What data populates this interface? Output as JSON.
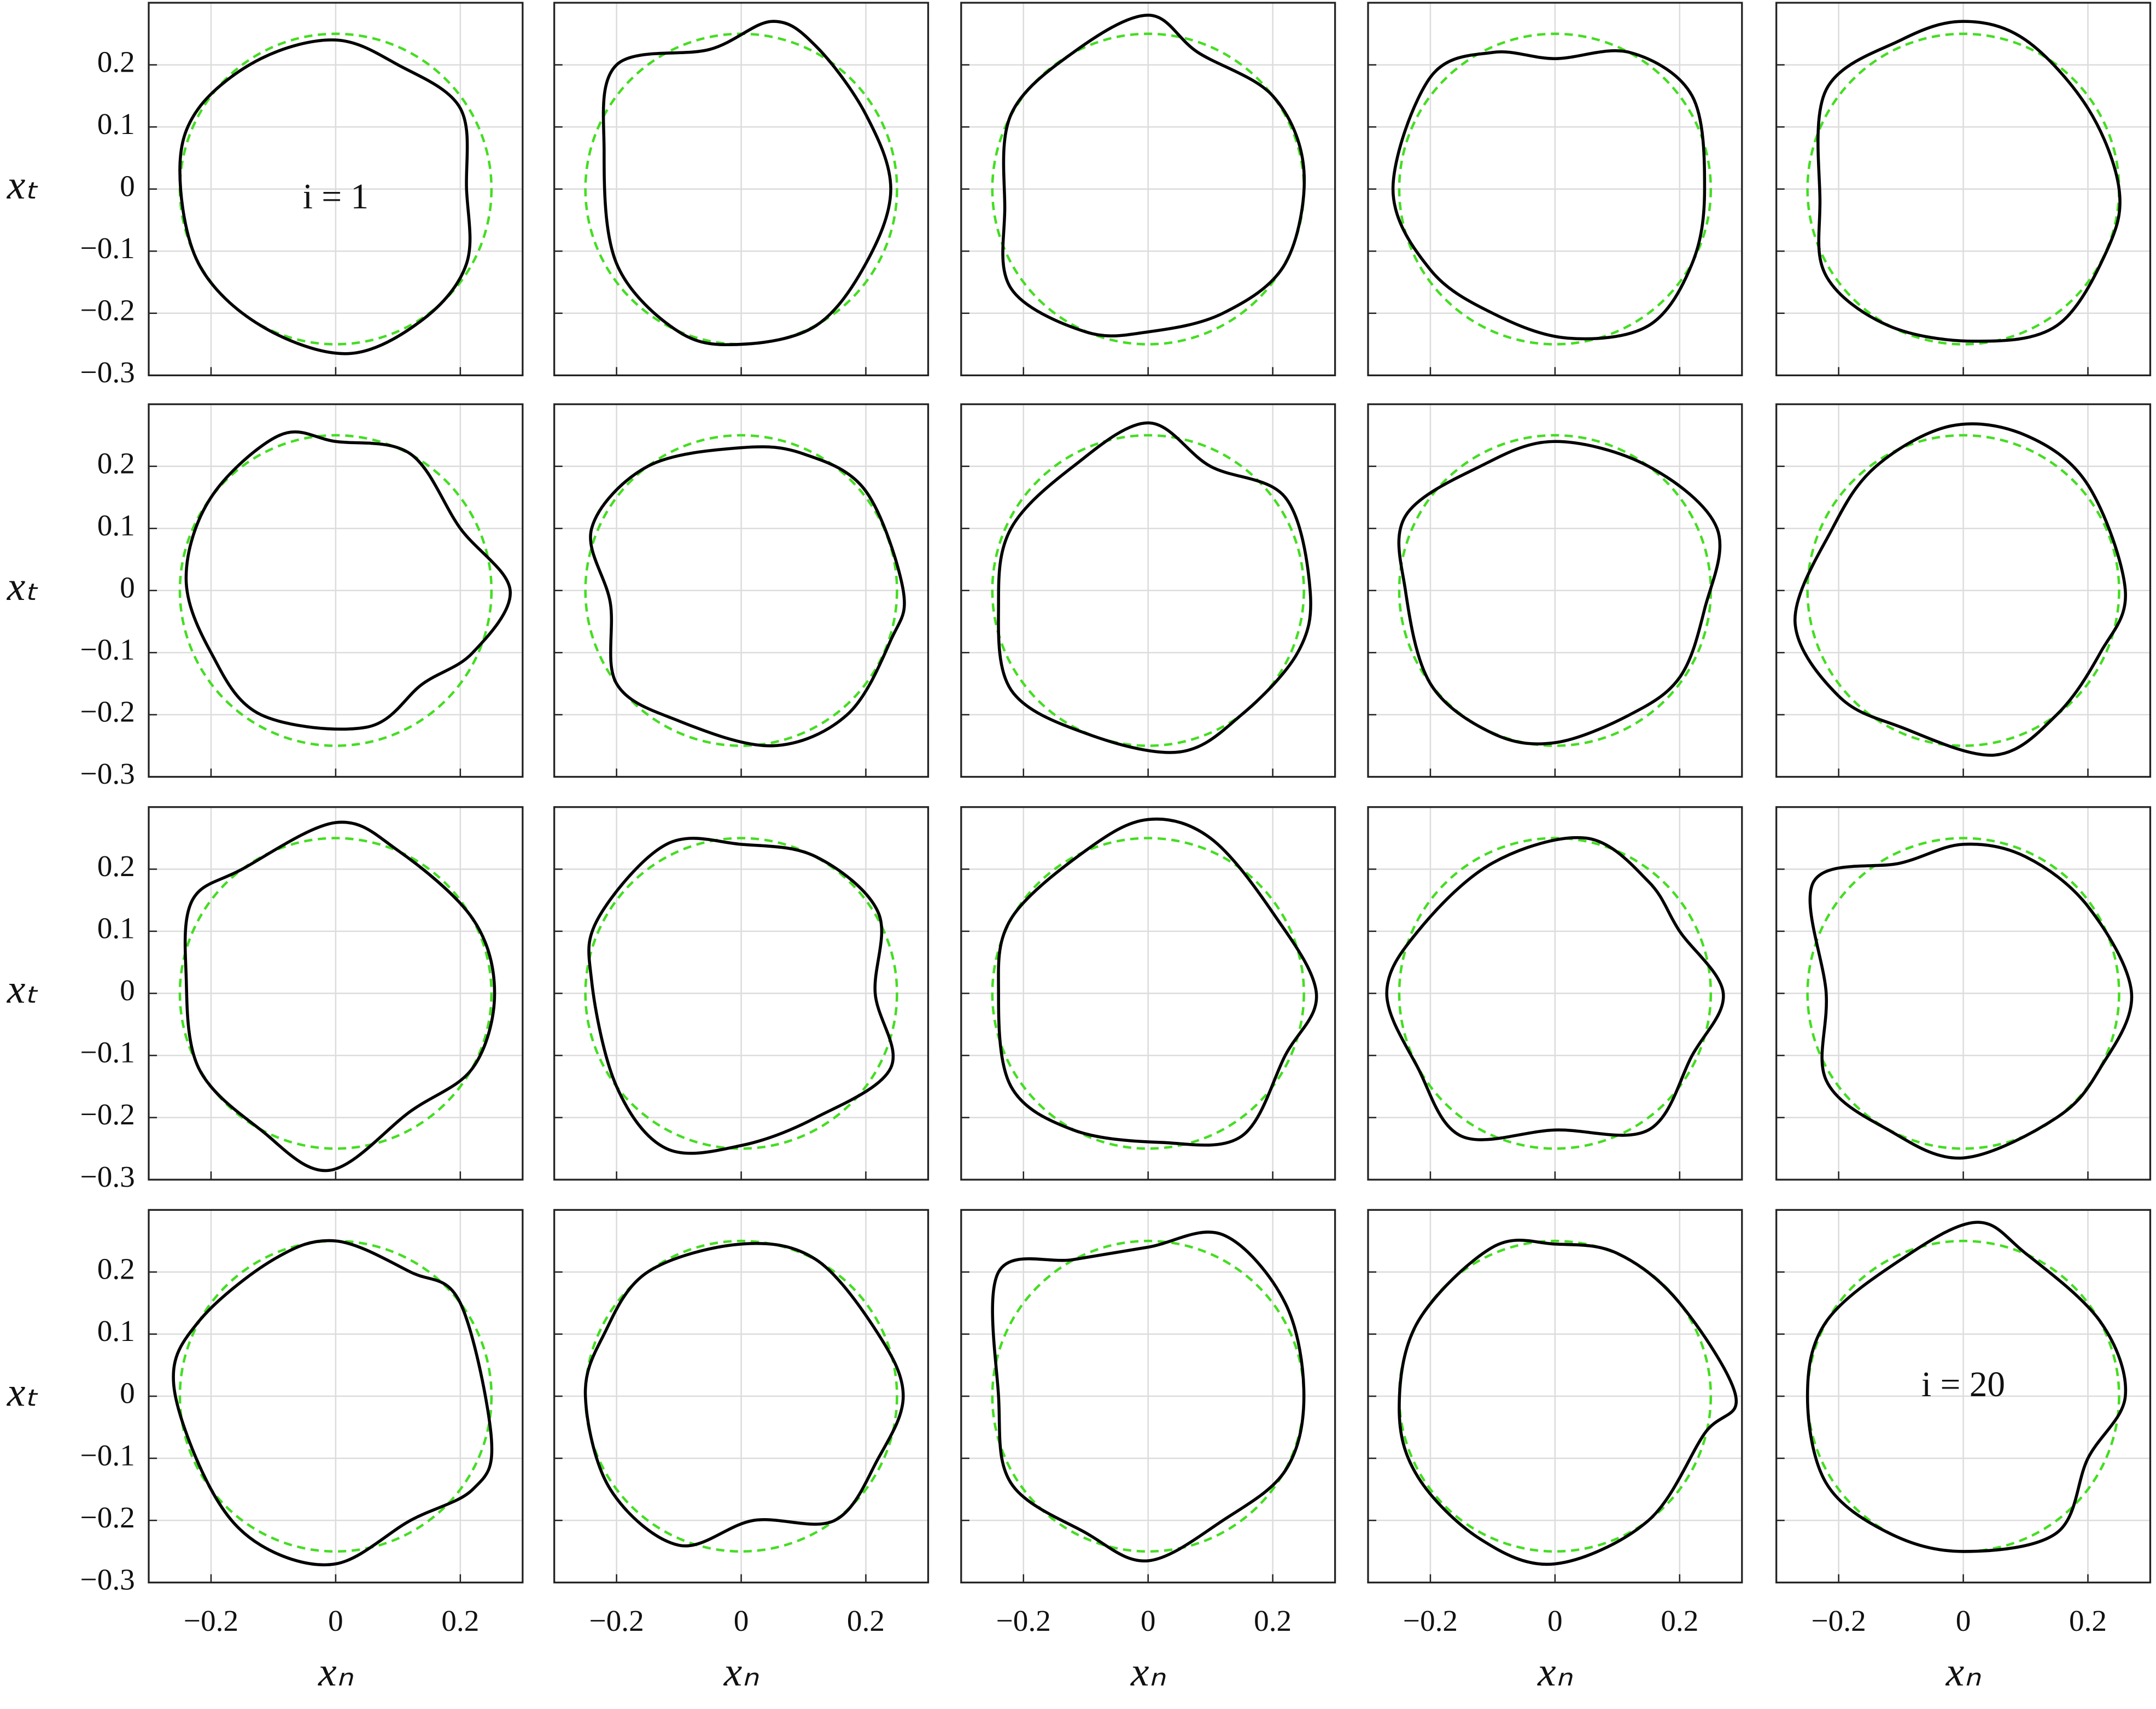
{
  "chart_data": {
    "type": "line",
    "xlabel": "xₙ",
    "ylabel": "xₜ",
    "xlim": [
      -0.3,
      0.3
    ],
    "ylim": [
      -0.3,
      0.3
    ],
    "xticks": [
      {
        "value": -0.2,
        "label": "−0.2"
      },
      0,
      0.2
    ],
    "yticks": [
      {
        "value": -0.3,
        "label": "−0.3"
      },
      {
        "value": -0.2,
        "label": "−0.2"
      },
      {
        "value": -0.1,
        "label": "−0.1"
      },
      0,
      0.1,
      0.2
    ],
    "grid": true,
    "color": "#000000",
    "reference_circle": {
      "radius": 0.25,
      "color": "#44dd22"
    },
    "panels": [
      {
        "x": [
          0.21,
          0.2,
          0.1,
          0,
          -0.12,
          -0.22,
          -0.25,
          -0.22,
          -0.12,
          0.02,
          0.14,
          0.21
        ],
        "y": [
          0,
          0.13,
          0.2,
          0.24,
          0.21,
          0.13,
          0.03,
          -0.12,
          -0.22,
          -0.265,
          -0.21,
          -0.12
        ],
        "annotation": "i = 1"
      },
      {
        "x": [
          0.24,
          0.2,
          0.12,
          0.05,
          -0.05,
          -0.2,
          -0.22,
          -0.2,
          -0.1,
          0,
          0.12,
          0.2
        ],
        "y": [
          0,
          0.12,
          0.23,
          0.27,
          0.225,
          0.2,
          0.06,
          -0.12,
          -0.23,
          -0.25,
          -0.22,
          -0.12
        ]
      },
      {
        "x": [
          0.25,
          0.2,
          0.08,
          0,
          -0.12,
          -0.22,
          -0.23,
          -0.22,
          -0.1,
          0,
          0.12,
          0.22
        ],
        "y": [
          0.03,
          0.15,
          0.22,
          0.28,
          0.22,
          0.12,
          -0.03,
          -0.16,
          -0.23,
          -0.23,
          -0.2,
          -0.12
        ]
      },
      {
        "x": [
          0.24,
          0.22,
          0.12,
          0,
          -0.1,
          -0.2,
          -0.26,
          -0.2,
          -0.1,
          0.02,
          0.15,
          0.22
        ],
        "y": [
          0,
          0.15,
          0.22,
          0.21,
          0.22,
          0.18,
          0,
          -0.13,
          -0.2,
          -0.24,
          -0.22,
          -0.12
        ]
      },
      {
        "x": [
          0.25,
          0.2,
          0.1,
          0,
          -0.1,
          -0.22,
          -0.23,
          -0.22,
          -0.12,
          0.02,
          0.15,
          0.23
        ],
        "y": [
          0,
          0.13,
          0.24,
          0.27,
          0.24,
          0.16,
          -0.02,
          -0.14,
          -0.22,
          -0.245,
          -0.22,
          -0.1
        ]
      },
      {
        "x": [
          0.28,
          0.2,
          0.12,
          0,
          -0.09,
          -0.2,
          -0.24,
          -0.2,
          -0.12,
          0.05,
          0.14,
          0.22
        ],
        "y": [
          0,
          0.1,
          0.22,
          0.24,
          0.25,
          0.15,
          0.02,
          -0.1,
          -0.2,
          -0.22,
          -0.15,
          -0.1
        ]
      },
      {
        "x": [
          0.26,
          0.2,
          0.1,
          0,
          -0.15,
          -0.24,
          -0.21,
          -0.2,
          -0.1,
          0.05,
          0.17,
          0.24
        ],
        "y": [
          0,
          0.16,
          0.22,
          0.23,
          0.2,
          0.1,
          -0.02,
          -0.15,
          -0.21,
          -0.25,
          -0.2,
          -0.08
        ]
      },
      {
        "x": [
          0.26,
          0.22,
          0.1,
          0,
          -0.12,
          -0.22,
          -0.24,
          -0.22,
          -0.1,
          0.05,
          0.15,
          0.24
        ],
        "y": [
          0,
          0.15,
          0.2,
          0.27,
          0.2,
          0.1,
          -0.02,
          -0.16,
          -0.23,
          -0.26,
          -0.2,
          -0.1
        ]
      },
      {
        "x": [
          0.24,
          0.26,
          0.15,
          0,
          -0.12,
          -0.24,
          -0.24,
          -0.2,
          -0.1,
          0,
          0.12,
          0.2
        ],
        "y": [
          -0.03,
          0.1,
          0.2,
          0.24,
          0.2,
          0.12,
          0,
          -0.15,
          -0.23,
          -0.245,
          -0.2,
          -0.14
        ]
      },
      {
        "x": [
          0.26,
          0.2,
          0.1,
          -0.02,
          -0.14,
          -0.21,
          -0.27,
          -0.2,
          -0.1,
          0.05,
          0.15,
          0.22
        ],
        "y": [
          0,
          0.17,
          0.25,
          0.265,
          0.2,
          0.1,
          -0.05,
          -0.17,
          -0.22,
          -0.265,
          -0.2,
          -0.1
        ]
      },
      {
        "x": [
          0.255,
          0.22,
          0.1,
          0,
          -0.15,
          -0.23,
          -0.24,
          -0.22,
          -0.12,
          -0.01,
          0.12,
          0.22
        ],
        "y": [
          0,
          0.12,
          0.23,
          0.275,
          0.2,
          0.15,
          0.03,
          -0.12,
          -0.22,
          -0.285,
          -0.19,
          -0.12
        ]
      },
      {
        "x": [
          0.215,
          0.22,
          0.12,
          0,
          -0.12,
          -0.23,
          -0.24,
          -0.2,
          -0.12,
          0,
          0.12,
          0.24
        ],
        "y": [
          0,
          0.13,
          0.22,
          0.24,
          0.24,
          0.12,
          0.02,
          -0.15,
          -0.25,
          -0.245,
          -0.2,
          -0.12
        ]
      },
      {
        "x": [
          0.27,
          0.2,
          0.1,
          0,
          -0.1,
          -0.22,
          -0.24,
          -0.22,
          -0.12,
          0.02,
          0.15,
          0.22
        ],
        "y": [
          0,
          0.13,
          0.25,
          0.28,
          0.23,
          0.12,
          0,
          -0.15,
          -0.22,
          -0.24,
          -0.23,
          -0.1
        ]
      },
      {
        "x": [
          0.27,
          0.2,
          0.15,
          0.05,
          -0.1,
          -0.22,
          -0.27,
          -0.22,
          -0.15,
          0,
          0.15,
          0.22
        ],
        "y": [
          0,
          0.1,
          0.18,
          0.25,
          0.21,
          0.1,
          0,
          -0.12,
          -0.23,
          -0.22,
          -0.22,
          -0.1
        ]
      },
      {
        "x": [
          0.27,
          0.2,
          0.1,
          0,
          -0.1,
          -0.24,
          -0.22,
          -0.22,
          -0.12,
          0,
          0.15,
          0.22
        ],
        "y": [
          0,
          0.14,
          0.22,
          0.24,
          0.21,
          0.18,
          0,
          -0.14,
          -0.22,
          -0.265,
          -0.2,
          -0.12
        ]
      },
      {
        "x": [
          0.25,
          0.2,
          0.12,
          0,
          -0.1,
          -0.22,
          -0.26,
          -0.2,
          -0.12,
          0,
          0.12,
          0.22
        ],
        "y": [
          -0.07,
          0.15,
          0.2,
          0.25,
          0.22,
          0.12,
          0.02,
          -0.15,
          -0.24,
          -0.27,
          -0.2,
          -0.15
        ]
      },
      {
        "x": [
          0.26,
          0.22,
          0.12,
          0,
          -0.15,
          -0.22,
          -0.25,
          -0.21,
          -0.1,
          0.02,
          0.15,
          0.22
        ],
        "y": [
          0,
          0.1,
          0.22,
          0.245,
          0.2,
          0.1,
          0,
          -0.15,
          -0.24,
          -0.2,
          -0.2,
          -0.1
        ]
      },
      {
        "x": [
          0.25,
          0.22,
          0.12,
          0,
          -0.12,
          -0.24,
          -0.24,
          -0.22,
          -0.1,
          0,
          0.12,
          0.22
        ],
        "y": [
          0,
          0.15,
          0.26,
          0.24,
          0.22,
          0.2,
          0,
          -0.14,
          -0.22,
          -0.265,
          -0.2,
          -0.12
        ]
      },
      {
        "x": [
          0.29,
          0.2,
          0.1,
          0,
          -0.1,
          -0.22,
          -0.25,
          -0.22,
          -0.12,
          0,
          0.15,
          0.24
        ],
        "y": [
          0,
          0.15,
          0.23,
          0.245,
          0.24,
          0.12,
          -0.02,
          -0.13,
          -0.23,
          -0.27,
          -0.2,
          -0.06
        ]
      },
      {
        "x": [
          0.26,
          0.22,
          0.1,
          0.02,
          -0.1,
          -0.22,
          -0.25,
          -0.22,
          -0.12,
          0,
          0.15,
          0.2
        ],
        "y": [
          0,
          0.12,
          0.23,
          0.28,
          0.22,
          0.12,
          0,
          -0.14,
          -0.22,
          -0.25,
          -0.22,
          -0.1
        ],
        "annotation": "i = 20"
      }
    ]
  }
}
